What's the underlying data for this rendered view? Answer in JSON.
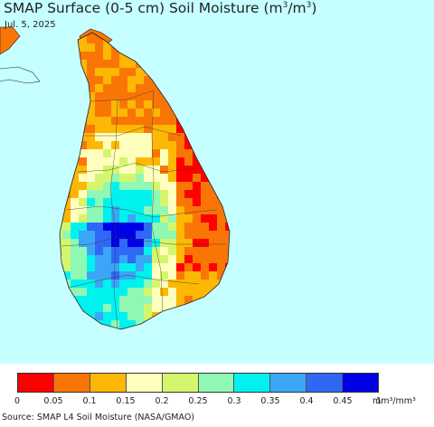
{
  "header": {
    "title_main": "SMAP Surface (0-5 cm) Soil Moisture (m",
    "title_sup1": "3",
    "title_mid": "/m",
    "title_sup2": "3",
    "title_end": ")",
    "date": "Jul. 5, 2025"
  },
  "legend": {
    "colors": [
      "#ff0000",
      "#f97606",
      "#fdb705",
      "#ffffbd",
      "#d5f66c",
      "#8ef8b4",
      "#00f2ef",
      "#3ba6f6",
      "#2f68f5",
      "#0000e6"
    ],
    "ticks": [
      "0",
      "0.05",
      "0.1",
      "0.15",
      "0.2",
      "0.25",
      "0.3",
      "0.35",
      "0.4",
      "0.45",
      "1"
    ],
    "unit": "mm³/mm³"
  },
  "source": "Source: SMAP L4 Soil Moisture (NASA/GMAO)",
  "map": {
    "ocean_color": "#c6ffff",
    "land_outline_color": "#222222",
    "regions": [
      {
        "id": "north",
        "level": 0.08
      },
      {
        "id": "northwest",
        "level": 0.12
      },
      {
        "id": "east_coast",
        "level": 0.09
      },
      {
        "id": "central",
        "level": 0.18
      },
      {
        "id": "highlands",
        "level": 0.42
      },
      {
        "id": "southwest",
        "level": 0.32
      },
      {
        "id": "south",
        "level": 0.27
      },
      {
        "id": "southeast",
        "level": 0.12
      }
    ]
  }
}
